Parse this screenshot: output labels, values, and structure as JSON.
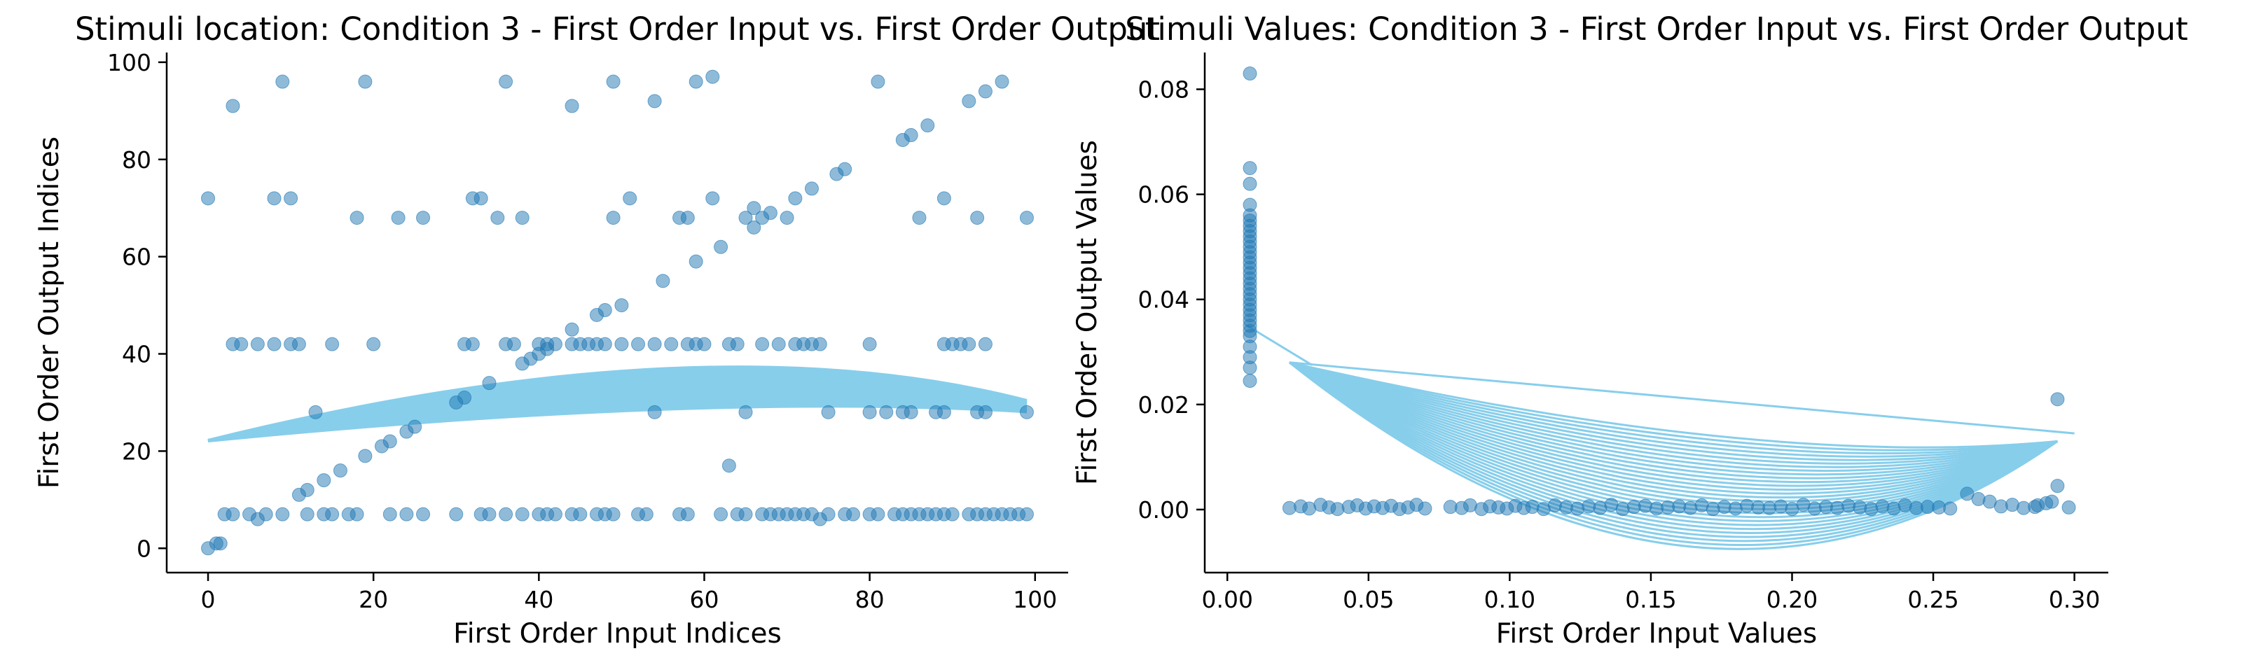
{
  "chart_data": [
    {
      "type": "scatter",
      "title": "Stimuli location: Condition 3 - First Order Input vs. First Order Output",
      "xlabel": "First Order Input Indices",
      "ylabel": "First Order Output Indices",
      "xlim": [
        -5,
        104
      ],
      "ylim": [
        -5,
        102
      ],
      "xticks": [
        0,
        20,
        40,
        60,
        80,
        100
      ],
      "yticks": [
        0,
        20,
        40,
        60,
        80,
        100
      ],
      "grid": false,
      "colors": {
        "points": "#1f77b4",
        "curves": "#87ceeb"
      },
      "point_opacity": 0.5,
      "points": [
        [
          0,
          0
        ],
        [
          1,
          1
        ],
        [
          1.5,
          1
        ],
        [
          2,
          7
        ],
        [
          3,
          7
        ],
        [
          5,
          7
        ],
        [
          6,
          6
        ],
        [
          7,
          7
        ],
        [
          9,
          7
        ],
        [
          12,
          7
        ],
        [
          14,
          7
        ],
        [
          15,
          7
        ],
        [
          17,
          7
        ],
        [
          18,
          7
        ],
        [
          22,
          7
        ],
        [
          24,
          7
        ],
        [
          26,
          7
        ],
        [
          30,
          7
        ],
        [
          33,
          7
        ],
        [
          34,
          7
        ],
        [
          36,
          7
        ],
        [
          38,
          7
        ],
        [
          40,
          7
        ],
        [
          41,
          7
        ],
        [
          42,
          7
        ],
        [
          44,
          7
        ],
        [
          45,
          7
        ],
        [
          47,
          7
        ],
        [
          48,
          7
        ],
        [
          49,
          7
        ],
        [
          52,
          7
        ],
        [
          53,
          7
        ],
        [
          57,
          7
        ],
        [
          58,
          7
        ],
        [
          62,
          7
        ],
        [
          64,
          7
        ],
        [
          65,
          7
        ],
        [
          67,
          7
        ],
        [
          68,
          7
        ],
        [
          69,
          7
        ],
        [
          70,
          7
        ],
        [
          71,
          7
        ],
        [
          72,
          7
        ],
        [
          73,
          7
        ],
        [
          74,
          6
        ],
        [
          75,
          7
        ],
        [
          77,
          7
        ],
        [
          78,
          7
        ],
        [
          80,
          7
        ],
        [
          81,
          7
        ],
        [
          83,
          7
        ],
        [
          84,
          7
        ],
        [
          85,
          7
        ],
        [
          86,
          7
        ],
        [
          87,
          7
        ],
        [
          88,
          7
        ],
        [
          89,
          7
        ],
        [
          90,
          7
        ],
        [
          92,
          7
        ],
        [
          93,
          7
        ],
        [
          94,
          7
        ],
        [
          95,
          7
        ],
        [
          96,
          7
        ],
        [
          97,
          7
        ],
        [
          98,
          7
        ],
        [
          99,
          7
        ],
        [
          3,
          42
        ],
        [
          4,
          42
        ],
        [
          6,
          42
        ],
        [
          8,
          42
        ],
        [
          10,
          42
        ],
        [
          11,
          42
        ],
        [
          15,
          42
        ],
        [
          20,
          42
        ],
        [
          31,
          42
        ],
        [
          32,
          42
        ],
        [
          36,
          42
        ],
        [
          37,
          42
        ],
        [
          40,
          42
        ],
        [
          41,
          42
        ],
        [
          44,
          42
        ],
        [
          45,
          42
        ],
        [
          46,
          42
        ],
        [
          47,
          42
        ],
        [
          48,
          42
        ],
        [
          50,
          42
        ],
        [
          52,
          42
        ],
        [
          54,
          42
        ],
        [
          56,
          42
        ],
        [
          58,
          42
        ],
        [
          59,
          42
        ],
        [
          60,
          42
        ],
        [
          63,
          42
        ],
        [
          64,
          42
        ],
        [
          67,
          42
        ],
        [
          69,
          42
        ],
        [
          71,
          42
        ],
        [
          72,
          42
        ],
        [
          73,
          42
        ],
        [
          74,
          42
        ],
        [
          80,
          42
        ],
        [
          89,
          42
        ],
        [
          90,
          42
        ],
        [
          91,
          42
        ],
        [
          92,
          42
        ],
        [
          94,
          42
        ],
        [
          0,
          72
        ],
        [
          3,
          91
        ],
        [
          8,
          72
        ],
        [
          10,
          72
        ],
        [
          9,
          96
        ],
        [
          18,
          68
        ],
        [
          19,
          96
        ],
        [
          23,
          68
        ],
        [
          26,
          68
        ],
        [
          32,
          72
        ],
        [
          33,
          72
        ],
        [
          35,
          68
        ],
        [
          36,
          96
        ],
        [
          38,
          68
        ],
        [
          44,
          91
        ],
        [
          49,
          68
        ],
        [
          49,
          96
        ],
        [
          51,
          72
        ],
        [
          54,
          92
        ],
        [
          57,
          68
        ],
        [
          58,
          68
        ],
        [
          59,
          96
        ],
        [
          61,
          97
        ],
        [
          61,
          72
        ],
        [
          65,
          68
        ],
        [
          66,
          70
        ],
        [
          67,
          68
        ],
        [
          68,
          69
        ],
        [
          70,
          68
        ],
        [
          71,
          72
        ],
        [
          73,
          74
        ],
        [
          76,
          77
        ],
        [
          77,
          78
        ],
        [
          81,
          96
        ],
        [
          84,
          84
        ],
        [
          85,
          85
        ],
        [
          86,
          68
        ],
        [
          87,
          87
        ],
        [
          89,
          72
        ],
        [
          92,
          92
        ],
        [
          93,
          68
        ],
        [
          94,
          94
        ],
        [
          96,
          96
        ],
        [
          99,
          68
        ],
        [
          11,
          11
        ],
        [
          12,
          12
        ],
        [
          14,
          14
        ],
        [
          16,
          16
        ],
        [
          19,
          19
        ],
        [
          21,
          21
        ],
        [
          22,
          22
        ],
        [
          24,
          24
        ],
        [
          25,
          25
        ],
        [
          30,
          30
        ],
        [
          31,
          31
        ],
        [
          34,
          34
        ],
        [
          38,
          38
        ],
        [
          39,
          39
        ],
        [
          40,
          40
        ],
        [
          41,
          41
        ],
        [
          42,
          42
        ],
        [
          44,
          45
        ],
        [
          47,
          48
        ],
        [
          48,
          49
        ],
        [
          50,
          50
        ],
        [
          55,
          55
        ],
        [
          59,
          59
        ],
        [
          62,
          62
        ],
        [
          63,
          17
        ],
        [
          66,
          66
        ],
        [
          13,
          28
        ],
        [
          54,
          28
        ],
        [
          65,
          28
        ],
        [
          75,
          28
        ],
        [
          80,
          28
        ],
        [
          82,
          28
        ],
        [
          84,
          28
        ],
        [
          85,
          28
        ],
        [
          88,
          28
        ],
        [
          89,
          28
        ],
        [
          93,
          28
        ],
        [
          94,
          28
        ],
        [
          99,
          28
        ]
      ],
      "curves": {
        "count": 26,
        "x_range": [
          0,
          99
        ],
        "left_y_range": [
          22,
          22.3
        ],
        "right_y_range": [
          28,
          30.5
        ],
        "peak_x": 60,
        "peak_y_range": [
          28.5,
          37
        ]
      }
    },
    {
      "type": "scatter",
      "title": "Stimuli Values: Condition 3 - First Order Input vs. First Order Output",
      "xlabel": "First Order Input Values",
      "ylabel": "First Order Output Values",
      "xlim": [
        -0.008,
        0.312
      ],
      "ylim": [
        -0.012,
        0.087
      ],
      "xticks": [
        0.0,
        0.05,
        0.1,
        0.15,
        0.2,
        0.25,
        0.3
      ],
      "xtick_labels": [
        "0.00",
        "0.05",
        "0.10",
        "0.15",
        "0.20",
        "0.25",
        "0.30"
      ],
      "yticks": [
        0.0,
        0.02,
        0.04,
        0.06,
        0.08
      ],
      "ytick_labels": [
        "0.00",
        "0.02",
        "0.04",
        "0.06",
        "0.08"
      ],
      "grid": false,
      "colors": {
        "points": "#1f77b4",
        "curves": "#87ceeb"
      },
      "point_opacity": 0.5,
      "points_vertical_cluster": {
        "x": 0.008,
        "y": [
          0.0245,
          0.027,
          0.029,
          0.031,
          0.033,
          0.034,
          0.035,
          0.036,
          0.037,
          0.038,
          0.039,
          0.04,
          0.041,
          0.042,
          0.043,
          0.044,
          0.045,
          0.046,
          0.047,
          0.048,
          0.049,
          0.05,
          0.051,
          0.052,
          0.053,
          0.054,
          0.055,
          0.056,
          0.058,
          0.062,
          0.065,
          0.083
        ]
      },
      "points_bottom_band": {
        "x": [
          0.022,
          0.026,
          0.029,
          0.033,
          0.036,
          0.039,
          0.043,
          0.046,
          0.049,
          0.052,
          0.055,
          0.058,
          0.061,
          0.064,
          0.067,
          0.07,
          0.079,
          0.083,
          0.086,
          0.09,
          0.093,
          0.096,
          0.099,
          0.102,
          0.105,
          0.108,
          0.112,
          0.116,
          0.12,
          0.124,
          0.128,
          0.132,
          0.136,
          0.14,
          0.144,
          0.148,
          0.152,
          0.156,
          0.16,
          0.164,
          0.168,
          0.172,
          0.176,
          0.18,
          0.184,
          0.188,
          0.192,
          0.196,
          0.2,
          0.204,
          0.208,
          0.212,
          0.216,
          0.22,
          0.224,
          0.228,
          0.232,
          0.236,
          0.24,
          0.244,
          0.248,
          0.252,
          0.256,
          0.262,
          0.266,
          0.27,
          0.274,
          0.278,
          0.282,
          0.286,
          0.29,
          0.294,
          0.298
        ],
        "y": [
          0.0003,
          0.0006,
          0.0002,
          0.0009,
          0.0004,
          0.0001,
          0.0005,
          0.0008,
          0.0002,
          0.0006,
          0.0003,
          0.0007,
          0.0001,
          0.0004,
          0.0009,
          0.0002,
          0.0005,
          0.0003,
          0.0008,
          0.0001,
          0.0006,
          0.0004,
          0.0002,
          0.0007,
          0.0003,
          0.0005,
          0.0001,
          0.0008,
          0.0004,
          0.0002,
          0.0006,
          0.0003,
          0.0009,
          0.0001,
          0.0005,
          0.0007,
          0.0002,
          0.0004,
          0.0006,
          0.0003,
          0.0008,
          0.0001,
          0.0005,
          0.0002,
          0.0007,
          0.0004,
          0.0003,
          0.0006,
          0.0001,
          0.0009,
          0.0002,
          0.0005,
          0.0003,
          0.0007,
          0.0004,
          0.0001,
          0.0006,
          0.0002,
          0.0008,
          0.0003,
          0.0005,
          0.0004,
          0.0002,
          0.003,
          0.002,
          0.0015,
          0.0006,
          0.0009,
          0.0003,
          0.0005,
          0.0012,
          0.0045,
          0.0004
        ]
      },
      "points_extra": [
        [
          0.294,
          0.021
        ],
        [
          0.292,
          0.0015
        ],
        [
          0.287,
          0.0008
        ]
      ],
      "curves": {
        "count": 28,
        "start": [
          0.022,
          0.028
        ],
        "end": [
          0.294,
          0.013
        ],
        "bottom_x": 0.178,
        "bottom_y_range": [
          -0.007,
          0.014
        ],
        "extra_lines": [
          [
            [
              0.007,
              0.035
            ],
            [
              0.03,
              0.0275
            ]
          ],
          [
            [
              0.022,
              0.028
            ],
            [
              0.3,
              0.0145
            ]
          ]
        ]
      }
    }
  ]
}
